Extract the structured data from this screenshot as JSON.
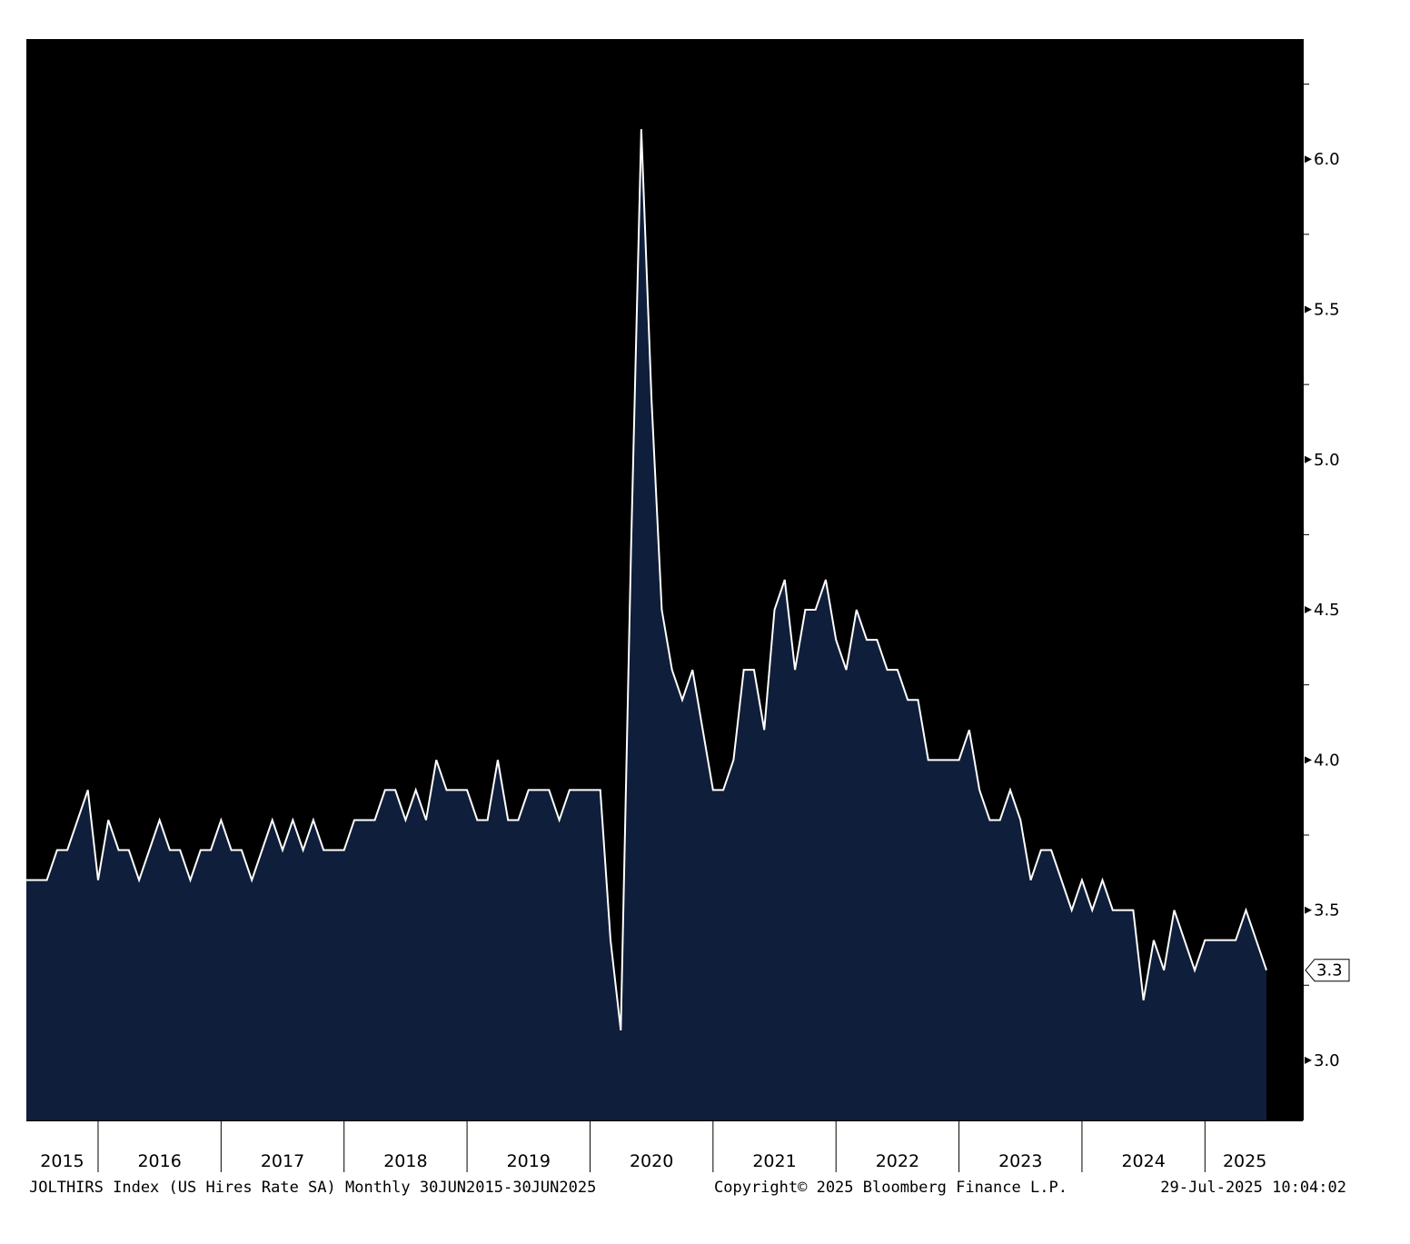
{
  "chart_data": {
    "type": "area",
    "title": "",
    "xlabel": "",
    "ylabel": "",
    "x_start": "2015-06",
    "x_end": "2025-06",
    "frequency": "monthly",
    "ylim": [
      2.8,
      6.4
    ],
    "y_ticks": [
      "3.0",
      "3.5",
      "4.0",
      "4.5",
      "5.0",
      "5.5",
      "6.0"
    ],
    "x_tick_labels": [
      "2015",
      "2016",
      "2017",
      "2018",
      "2019",
      "2020",
      "2021",
      "2022",
      "2023",
      "2024",
      "2025"
    ],
    "last_value_label": "3.3",
    "grid": false,
    "legend": "none",
    "colors": {
      "plot_background": "#000000",
      "area_fill": "#0f1e3a",
      "line": "#ffffff",
      "axis_panel": "#ffffff",
      "text": "#000000"
    },
    "series": [
      {
        "values": [
          3.6,
          3.6,
          3.6,
          3.7,
          3.7,
          3.8,
          3.9,
          3.6,
          3.8,
          3.7,
          3.7,
          3.6,
          3.7,
          3.8,
          3.7,
          3.7,
          3.6,
          3.7,
          3.7,
          3.8,
          3.7,
          3.7,
          3.6,
          3.7,
          3.8,
          3.7,
          3.8,
          3.7,
          3.8,
          3.7,
          3.7,
          3.7,
          3.8,
          3.8,
          3.8,
          3.9,
          3.9,
          3.8,
          3.9,
          3.8,
          4.0,
          3.9,
          3.9,
          3.9,
          3.8,
          3.8,
          4.0,
          3.8,
          3.8,
          3.9,
          3.9,
          3.9,
          3.8,
          3.9,
          3.9,
          3.9,
          3.9,
          3.4,
          3.1,
          4.7,
          6.1,
          5.2,
          4.5,
          4.3,
          4.2,
          4.3,
          4.1,
          3.9,
          3.9,
          4.0,
          4.3,
          4.3,
          4.1,
          4.5,
          4.6,
          4.3,
          4.5,
          4.5,
          4.6,
          4.4,
          4.3,
          4.5,
          4.4,
          4.4,
          4.3,
          4.3,
          4.2,
          4.2,
          4.0,
          4.0,
          4.0,
          4.0,
          4.1,
          3.9,
          3.8,
          3.8,
          3.9,
          3.8,
          3.6,
          3.7,
          3.7,
          3.6,
          3.5,
          3.6,
          3.5,
          3.6,
          3.5,
          3.5,
          3.5,
          3.2,
          3.4,
          3.3,
          3.5,
          3.4,
          3.3,
          3.4,
          3.4,
          3.4,
          3.4,
          3.5,
          3.4,
          3.3
        ]
      }
    ]
  },
  "footer": {
    "left": "JOLTHIRS Index (US Hires Rate SA)  Monthly 30JUN2015-30JUN2025",
    "center": "Copyright© 2025 Bloomberg Finance L.P.",
    "right": "29-Jul-2025 10:04:02"
  }
}
